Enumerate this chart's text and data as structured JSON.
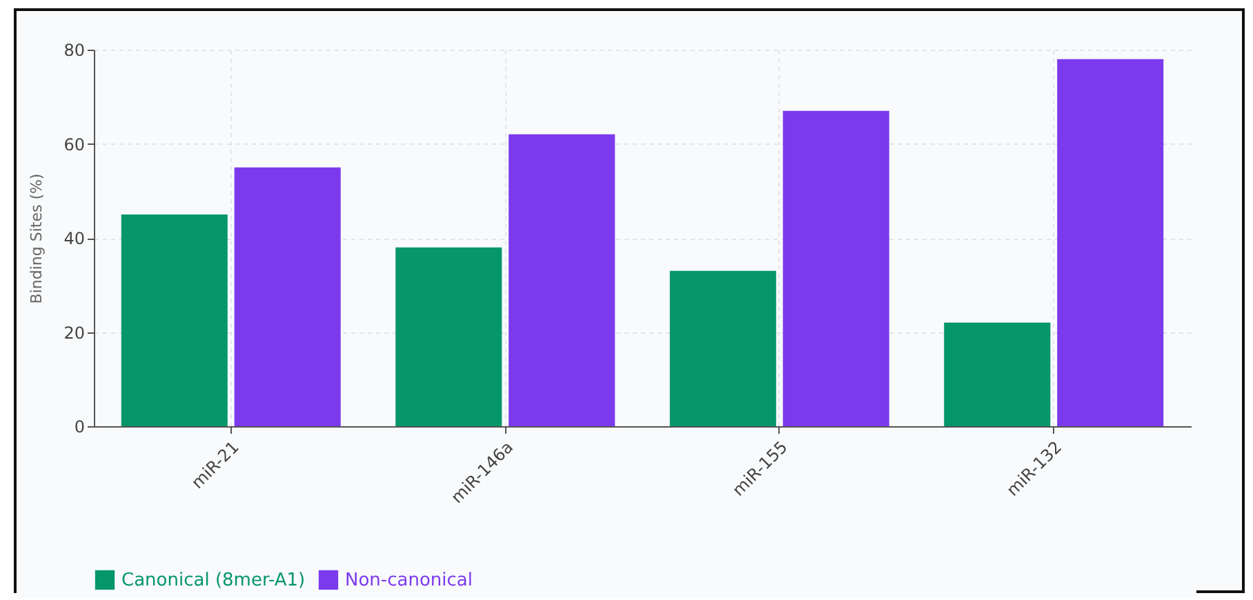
{
  "chart_data": {
    "type": "bar",
    "ylabel": "Binding Sites (%)",
    "categories": [
      "miR-21",
      "miR-146a",
      "miR-155",
      "miR-132"
    ],
    "series": [
      {
        "name": "Canonical (8mer-A1)",
        "color": "#059669",
        "values": [
          45,
          38,
          33,
          22
        ]
      },
      {
        "name": "Non-canonical",
        "color": "#7c3aed",
        "values": [
          55,
          62,
          67,
          78
        ]
      }
    ],
    "ylim": [
      0,
      80
    ],
    "yticks": [
      0,
      20,
      40,
      60,
      80
    ],
    "grid": true,
    "legend": "bottom"
  }
}
